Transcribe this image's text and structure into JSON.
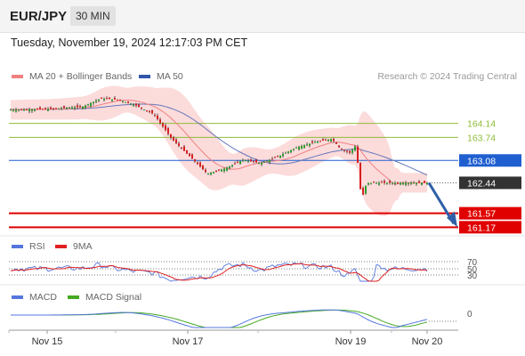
{
  "header": {
    "symbol": "EUR/JPY",
    "timeframe": "30 MIN"
  },
  "datetime": "Tuesday, November 19, 2024 12:17:03 PM CET",
  "credit": "Research © 2024 Trading Central",
  "legend": {
    "main": [
      {
        "label": "MA 20 + Bollinger Bands",
        "color": "#f08080"
      },
      {
        "label": "MA 50",
        "color": "#3355aa"
      }
    ],
    "rsi": [
      {
        "label": "RSI",
        "color": "#5577dd"
      },
      {
        "label": "9MA",
        "color": "#e02020"
      }
    ],
    "macd": [
      {
        "label": "MACD",
        "color": "#5577dd"
      },
      {
        "label": "MACD Signal",
        "color": "#44aa22"
      }
    ]
  },
  "chart_data": {
    "type": "line",
    "x_ticks": [
      "Nov 15",
      "Nov 17",
      "Nov 19",
      "Nov 20"
    ],
    "y_range": [
      161.0,
      165.2
    ],
    "price_series": [
      [
        "Nov 15 00:00",
        164.55
      ],
      [
        "Nov 15 12:00",
        164.62
      ],
      [
        "Nov 15 18:00",
        164.85
      ],
      [
        "Nov 16 00:00",
        164.82
      ],
      [
        "Nov 16 06:00",
        164.65
      ],
      [
        "Nov 16 12:00",
        164.4
      ],
      [
        "Nov 16 18:00",
        163.7
      ],
      [
        "Nov 17 00:00",
        163.2
      ],
      [
        "Nov 17 06:00",
        162.7
      ],
      [
        "Nov 17 12:00",
        162.85
      ],
      [
        "Nov 17 18:00",
        163.1
      ],
      [
        "Nov 18 00:00",
        163.0
      ],
      [
        "Nov 18 06:00",
        163.2
      ],
      [
        "Nov 18 12:00",
        163.45
      ],
      [
        "Nov 18 18:00",
        163.6
      ],
      [
        "Nov 19 00:00",
        163.7
      ],
      [
        "Nov 19 03:00",
        163.4
      ],
      [
        "Nov 19 06:00",
        163.3
      ],
      [
        "Nov 19 08:00",
        163.5
      ],
      [
        "Nov 19 09:00",
        162.8
      ],
      [
        "Nov 19 10:00",
        161.9
      ],
      [
        "Nov 19 11:00",
        162.3
      ],
      [
        "Nov 19 12:00",
        162.44
      ]
    ],
    "price_levels": [
      {
        "label": "164.14",
        "value": 164.14,
        "color": "#8fbc3a",
        "style": "text"
      },
      {
        "label": "163.74",
        "value": 163.74,
        "color": "#8fbc3a",
        "style": "text"
      },
      {
        "label": "163.08",
        "value": 163.08,
        "color": "#1f5fd0",
        "style": "box"
      },
      {
        "label": "162.44",
        "value": 162.44,
        "color": "#333333",
        "style": "box"
      },
      {
        "label": "161.57",
        "value": 161.57,
        "color": "#e00000",
        "style": "box"
      },
      {
        "label": "161.17",
        "value": 161.17,
        "color": "#e00000",
        "style": "box"
      }
    ],
    "rsi_levels": [
      "70",
      "50",
      "30"
    ],
    "macd_levels": [
      "0"
    ]
  }
}
